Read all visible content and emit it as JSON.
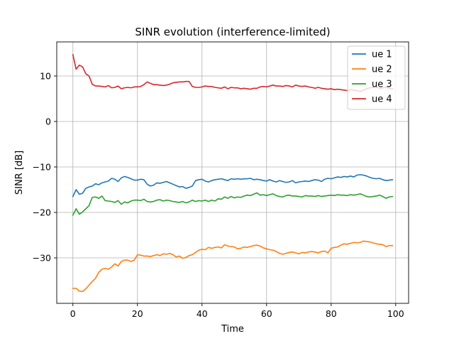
{
  "chart_data": {
    "type": "line",
    "title": "SINR evolution (interference-limited)",
    "xlabel": "Time",
    "ylabel": "SINR [dB]",
    "xlim": [
      -5,
      104
    ],
    "ylim": [
      -40,
      17.5
    ],
    "xticks": [
      0,
      20,
      40,
      60,
      80,
      100
    ],
    "yticks": [
      10,
      0,
      -10,
      -20,
      -30
    ],
    "xtick_labels": [
      "0",
      "20",
      "40",
      "60",
      "80",
      "100"
    ],
    "ytick_labels": [
      "10",
      "0",
      "−10",
      "−20",
      "−30"
    ],
    "grid": true,
    "legend_position": "top-right",
    "x": [
      0,
      1,
      2,
      3,
      4,
      5,
      6,
      7,
      8,
      9,
      10,
      11,
      12,
      13,
      14,
      15,
      16,
      17,
      18,
      19,
      20,
      21,
      22,
      23,
      24,
      25,
      26,
      27,
      28,
      29,
      30,
      31,
      32,
      33,
      34,
      35,
      36,
      37,
      38,
      39,
      40,
      41,
      42,
      43,
      44,
      45,
      46,
      47,
      48,
      49,
      50,
      51,
      52,
      53,
      54,
      55,
      56,
      57,
      58,
      59,
      60,
      61,
      62,
      63,
      64,
      65,
      66,
      67,
      68,
      69,
      70,
      71,
      72,
      73,
      74,
      75,
      76,
      77,
      78,
      79,
      80,
      81,
      82,
      83,
      84,
      85,
      86,
      87,
      88,
      89,
      90,
      91,
      92,
      93,
      94,
      95,
      96,
      97,
      98,
      99
    ],
    "series": [
      {
        "name": "ue 1",
        "color": "#1f77b4",
        "values": [
          -16.5,
          -15.0,
          -16.0,
          -15.8,
          -14.7,
          -14.4,
          -14.2,
          -13.7,
          -13.9,
          -13.5,
          -13.3,
          -13.1,
          -12.5,
          -12.7,
          -13.2,
          -12.4,
          -12.1,
          -12.3,
          -12.6,
          -12.9,
          -12.9,
          -12.7,
          -12.8,
          -13.8,
          -14.2,
          -14.0,
          -13.5,
          -13.6,
          -13.4,
          -13.2,
          -13.5,
          -13.8,
          -14.1,
          -14.4,
          -14.3,
          -14.7,
          -14.5,
          -14.2,
          -13.0,
          -12.8,
          -12.7,
          -13.1,
          -13.3,
          -13.0,
          -12.8,
          -12.7,
          -12.6,
          -12.8,
          -13.0,
          -12.6,
          -12.7,
          -12.6,
          -12.7,
          -12.6,
          -12.6,
          -12.5,
          -12.8,
          -12.7,
          -12.8,
          -13.0,
          -13.1,
          -12.8,
          -13.1,
          -13.3,
          -13.0,
          -13.2,
          -13.4,
          -13.3,
          -13.0,
          -13.5,
          -13.3,
          -13.2,
          -13.1,
          -13.2,
          -13.0,
          -12.8,
          -12.9,
          -13.2,
          -12.7,
          -12.5,
          -12.6,
          -12.4,
          -12.2,
          -12.3,
          -12.1,
          -12.2,
          -12.0,
          -12.2,
          -11.8,
          -11.7,
          -11.8,
          -12.0,
          -12.3,
          -12.5,
          -12.6,
          -12.5,
          -12.8,
          -13.0,
          -12.9,
          -12.8
        ]
      },
      {
        "name": "ue 2",
        "color": "#ff7f0e",
        "values": [
          -36.7,
          -36.7,
          -37.3,
          -37.4,
          -36.8,
          -36.0,
          -35.2,
          -34.5,
          -33.2,
          -32.5,
          -32.3,
          -32.5,
          -32.0,
          -31.3,
          -31.8,
          -30.8,
          -30.5,
          -30.5,
          -30.8,
          -30.5,
          -29.3,
          -29.4,
          -29.6,
          -29.6,
          -29.7,
          -29.5,
          -29.3,
          -29.5,
          -29.1,
          -29.2,
          -29.0,
          -29.3,
          -29.8,
          -29.6,
          -30.1,
          -29.9,
          -29.5,
          -29.3,
          -28.8,
          -28.3,
          -28.1,
          -28.2,
          -27.7,
          -27.9,
          -27.7,
          -27.6,
          -27.8,
          -27.1,
          -27.4,
          -27.5,
          -27.6,
          -28.0,
          -27.9,
          -27.6,
          -27.7,
          -27.5,
          -27.3,
          -27.2,
          -27.4,
          -27.8,
          -28.0,
          -28.2,
          -28.3,
          -28.6,
          -29.0,
          -29.2,
          -29.0,
          -28.8,
          -28.7,
          -28.9,
          -29.1,
          -28.8,
          -28.9,
          -28.7,
          -28.6,
          -28.7,
          -28.9,
          -28.6,
          -28.5,
          -28.9,
          -27.9,
          -27.7,
          -27.6,
          -27.2,
          -26.9,
          -27.0,
          -26.8,
          -26.6,
          -26.7,
          -26.6,
          -26.3,
          -26.4,
          -26.5,
          -26.7,
          -26.9,
          -27.0,
          -27.1,
          -27.5,
          -27.3,
          -27.3
        ]
      },
      {
        "name": "ue 3",
        "color": "#2ca02c",
        "values": [
          -20.6,
          -19.2,
          -20.4,
          -19.9,
          -19.2,
          -18.5,
          -16.7,
          -16.6,
          -16.9,
          -16.4,
          -17.4,
          -17.5,
          -17.6,
          -17.8,
          -17.4,
          -18.2,
          -17.7,
          -17.9,
          -17.5,
          -17.3,
          -17.3,
          -17.4,
          -17.1,
          -17.6,
          -17.7,
          -17.6,
          -17.3,
          -17.2,
          -17.5,
          -17.3,
          -17.4,
          -17.6,
          -17.7,
          -17.8,
          -17.6,
          -17.9,
          -17.7,
          -17.3,
          -17.6,
          -17.4,
          -17.5,
          -17.3,
          -17.6,
          -17.3,
          -17.5,
          -17.0,
          -17.1,
          -16.6,
          -16.9,
          -16.5,
          -16.8,
          -16.6,
          -16.7,
          -16.4,
          -16.2,
          -16.3,
          -16.0,
          -15.7,
          -16.2,
          -16.1,
          -16.3,
          -16.1,
          -15.9,
          -16.3,
          -16.5,
          -16.6,
          -16.3,
          -16.2,
          -16.4,
          -16.4,
          -16.5,
          -16.6,
          -16.3,
          -16.4,
          -16.4,
          -16.5,
          -16.3,
          -16.5,
          -16.4,
          -16.3,
          -16.2,
          -16.3,
          -16.1,
          -16.2,
          -16.2,
          -16.3,
          -16.1,
          -16.2,
          -16.1,
          -15.9,
          -16.2,
          -16.5,
          -16.6,
          -16.5,
          -16.4,
          -16.2,
          -16.5,
          -16.9,
          -16.6,
          -16.5
        ]
      },
      {
        "name": "ue 4",
        "color": "#d62728",
        "values": [
          14.7,
          11.5,
          12.4,
          12.0,
          10.5,
          10.0,
          8.2,
          7.8,
          7.8,
          7.7,
          7.6,
          7.9,
          7.4,
          7.5,
          7.8,
          7.2,
          7.4,
          7.5,
          7.4,
          7.6,
          7.6,
          7.7,
          8.1,
          8.7,
          8.4,
          8.1,
          8.1,
          8.0,
          7.9,
          8.0,
          8.2,
          8.5,
          8.6,
          8.7,
          8.7,
          8.8,
          8.8,
          7.7,
          7.5,
          7.5,
          7.6,
          7.8,
          7.7,
          7.7,
          7.5,
          7.4,
          7.3,
          7.6,
          7.2,
          7.5,
          7.4,
          7.4,
          7.2,
          7.3,
          7.2,
          7.1,
          7.3,
          7.3,
          7.6,
          7.7,
          7.6,
          7.8,
          8.0,
          7.8,
          7.8,
          7.7,
          7.9,
          7.8,
          7.6,
          8.0,
          7.8,
          7.7,
          7.8,
          7.6,
          7.5,
          7.3,
          7.5,
          7.3,
          7.2,
          7.1,
          7.2,
          7.0,
          7.1,
          7.0,
          6.9,
          6.8,
          7.0,
          6.9,
          6.8,
          6.6,
          6.9,
          7.2,
          7.4,
          7.5,
          7.6,
          7.3,
          7.4,
          7.5,
          7.3,
          7.2
        ]
      }
    ]
  }
}
